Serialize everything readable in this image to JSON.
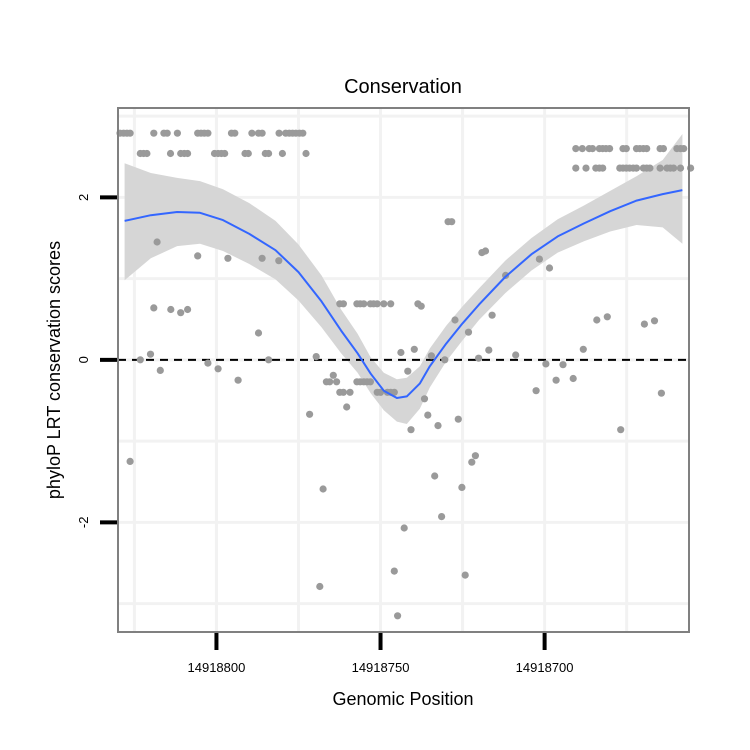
{
  "chart_data": {
    "type": "scatter",
    "title": "Conservation",
    "xlabel": "Genomic Position",
    "ylabel": "phyloP LRT conservation scores",
    "x_reversed": true,
    "xlim": [
      14918830,
      14918656
    ],
    "ylim": [
      -3.35,
      3.1
    ],
    "x_ticks": [
      {
        "value": 14918800,
        "label": "14918800"
      },
      {
        "value": 14918750,
        "label": "14918750"
      },
      {
        "value": 14918700,
        "label": "14918700"
      }
    ],
    "y_ticks": [
      {
        "value": 2,
        "label": "2"
      },
      {
        "value": 0,
        "label": "0"
      },
      {
        "value": -2,
        "label": "-2"
      }
    ],
    "reference_line": {
      "y": 0,
      "style": "dashed"
    },
    "colors": {
      "points": "#9a9a9a",
      "smooth": "#3366ff",
      "ribbon": "#d6d6d6",
      "grid": "#f2f2f2",
      "border": "#808080",
      "refline": "#000000"
    },
    "points": [
      [
        14918829.4,
        2.79
      ],
      [
        14918828.3,
        2.79
      ],
      [
        14918827.3,
        2.79
      ],
      [
        14918826.3,
        2.79
      ],
      [
        14918823.2,
        2.54
      ],
      [
        14918822.2,
        2.54
      ],
      [
        14918821.2,
        2.54
      ],
      [
        14918819.1,
        2.79
      ],
      [
        14918816.0,
        2.79
      ],
      [
        14918815.0,
        2.79
      ],
      [
        14918814.0,
        2.54
      ],
      [
        14918811.9,
        2.79
      ],
      [
        14918810.9,
        2.54
      ],
      [
        14918809.8,
        2.54
      ],
      [
        14918808.8,
        2.54
      ],
      [
        14918805.7,
        2.79
      ],
      [
        14918804.7,
        2.79
      ],
      [
        14918803.7,
        2.79
      ],
      [
        14918802.6,
        2.79
      ],
      [
        14918800.6,
        2.54
      ],
      [
        14918799.5,
        2.54
      ],
      [
        14918798.5,
        2.54
      ],
      [
        14918797.5,
        2.54
      ],
      [
        14918795.4,
        2.79
      ],
      [
        14918794.4,
        2.79
      ],
      [
        14918791.3,
        2.54
      ],
      [
        14918790.3,
        2.54
      ],
      [
        14918789.2,
        2.79
      ],
      [
        14918787.2,
        2.79
      ],
      [
        14918786.1,
        2.79
      ],
      [
        14918785.1,
        2.54
      ],
      [
        14918784.1,
        2.54
      ],
      [
        14918780.9,
        2.79
      ],
      [
        14918779.9,
        2.54
      ],
      [
        14918778.9,
        2.79
      ],
      [
        14918777.8,
        2.79
      ],
      [
        14918776.8,
        2.79
      ],
      [
        14918775.8,
        2.79
      ],
      [
        14918774.7,
        2.79
      ],
      [
        14918773.7,
        2.79
      ],
      [
        14918772.7,
        2.54
      ],
      [
        14918690.5,
        2.6
      ],
      [
        14918688.5,
        2.6
      ],
      [
        14918686.4,
        2.6
      ],
      [
        14918685.4,
        2.6
      ],
      [
        14918683.3,
        2.6
      ],
      [
        14918682.3,
        2.6
      ],
      [
        14918681.3,
        2.6
      ],
      [
        14918680.2,
        2.6
      ],
      [
        14918676.1,
        2.6
      ],
      [
        14918675.1,
        2.6
      ],
      [
        14918672.0,
        2.6
      ],
      [
        14918671.0,
        2.6
      ],
      [
        14918669.9,
        2.6
      ],
      [
        14918668.9,
        2.6
      ],
      [
        14918664.8,
        2.6
      ],
      [
        14918663.8,
        2.6
      ],
      [
        14918659.7,
        2.6
      ],
      [
        14918658.6,
        2.6
      ],
      [
        14918657.6,
        2.6
      ],
      [
        14918690.5,
        2.36
      ],
      [
        14918687.4,
        2.36
      ],
      [
        14918684.4,
        2.36
      ],
      [
        14918683.3,
        2.36
      ],
      [
        14918682.3,
        2.36
      ],
      [
        14918677.1,
        2.36
      ],
      [
        14918676.1,
        2.36
      ],
      [
        14918675.1,
        2.36
      ],
      [
        14918674.1,
        2.36
      ],
      [
        14918673.0,
        2.36
      ],
      [
        14918672.0,
        2.36
      ],
      [
        14918669.9,
        2.36
      ],
      [
        14918668.9,
        2.36
      ],
      [
        14918667.9,
        2.36
      ],
      [
        14918664.8,
        2.36
      ],
      [
        14918662.7,
        2.36
      ],
      [
        14918661.7,
        2.36
      ],
      [
        14918660.7,
        2.36
      ],
      [
        14918658.6,
        2.36
      ],
      [
        14918655.5,
        2.36
      ],
      [
        14918826.3,
        -1.25
      ],
      [
        14918823.2,
        0.0
      ],
      [
        14918820.1,
        0.07
      ],
      [
        14918819.1,
        0.64
      ],
      [
        14918818.1,
        1.45
      ],
      [
        14918817.1,
        -0.13
      ],
      [
        14918813.9,
        0.62
      ],
      [
        14918810.9,
        0.58
      ],
      [
        14918808.8,
        0.62
      ],
      [
        14918805.7,
        1.28
      ],
      [
        14918802.6,
        -0.04
      ],
      [
        14918799.5,
        -0.11
      ],
      [
        14918796.5,
        1.25
      ],
      [
        14918793.4,
        -0.25
      ],
      [
        14918787.2,
        0.33
      ],
      [
        14918786.1,
        1.25
      ],
      [
        14918784.1,
        0.0
      ],
      [
        14918781.0,
        1.22
      ],
      [
        14918771.6,
        -0.67
      ],
      [
        14918769.6,
        0.04
      ],
      [
        14918768.5,
        -2.79
      ],
      [
        14918767.5,
        -1.59
      ],
      [
        14918766.5,
        -0.27
      ],
      [
        14918765.5,
        -0.27
      ],
      [
        14918764.4,
        -0.19
      ],
      [
        14918763.4,
        -0.27
      ],
      [
        14918762.4,
        -0.4
      ],
      [
        14918761.3,
        -0.4
      ],
      [
        14918760.3,
        -0.58
      ],
      [
        14918759.3,
        -0.4
      ],
      [
        14918757.2,
        -0.27
      ],
      [
        14918756.2,
        -0.27
      ],
      [
        14918755.1,
        -0.27
      ],
      [
        14918754.1,
        -0.27
      ],
      [
        14918753.1,
        -0.27
      ],
      [
        14918751.0,
        -0.4
      ],
      [
        14918750.0,
        -0.4
      ],
      [
        14918762.4,
        0.69
      ],
      [
        14918761.3,
        0.69
      ],
      [
        14918757.2,
        0.69
      ],
      [
        14918756.2,
        0.69
      ],
      [
        14918755.1,
        0.69
      ],
      [
        14918753.1,
        0.69
      ],
      [
        14918752.1,
        0.69
      ],
      [
        14918751.0,
        0.69
      ],
      [
        14918749.0,
        0.69
      ],
      [
        14918746.9,
        0.69
      ],
      [
        14918747.9,
        -0.4
      ],
      [
        14918746.9,
        -0.4
      ],
      [
        14918745.8,
        -0.4
      ],
      [
        14918745.8,
        -2.6
      ],
      [
        14918744.8,
        -3.15
      ],
      [
        14918743.8,
        0.09
      ],
      [
        14918742.8,
        -2.07
      ],
      [
        14918741.7,
        -0.14
      ],
      [
        14918740.7,
        -0.86
      ],
      [
        14918739.7,
        0.13
      ],
      [
        14918738.6,
        0.69
      ],
      [
        14918737.6,
        0.66
      ],
      [
        14918736.6,
        -0.48
      ],
      [
        14918735.6,
        -0.68
      ],
      [
        14918734.5,
        0.05
      ],
      [
        14918733.5,
        -1.43
      ],
      [
        14918732.5,
        -0.81
      ],
      [
        14918731.4,
        -1.93
      ],
      [
        14918730.4,
        0.0
      ],
      [
        14918729.4,
        1.7
      ],
      [
        14918728.3,
        1.7
      ],
      [
        14918727.3,
        0.49
      ],
      [
        14918726.3,
        -0.73
      ],
      [
        14918725.2,
        -1.57
      ],
      [
        14918724.2,
        -2.65
      ],
      [
        14918723.2,
        0.34
      ],
      [
        14918722.2,
        -1.26
      ],
      [
        14918721.1,
        -1.18
      ],
      [
        14918720.1,
        0.02
      ],
      [
        14918719.1,
        1.32
      ],
      [
        14918718.0,
        1.34
      ],
      [
        14918717.0,
        0.12
      ],
      [
        14918716.0,
        0.55
      ],
      [
        14918711.9,
        1.04
      ],
      [
        14918708.8,
        0.06
      ],
      [
        14918702.6,
        -0.38
      ],
      [
        14918701.6,
        1.24
      ],
      [
        14918699.6,
        -0.05
      ],
      [
        14918698.5,
        1.13
      ],
      [
        14918696.5,
        -0.25
      ],
      [
        14918694.4,
        -0.06
      ],
      [
        14918691.3,
        -0.23
      ],
      [
        14918688.2,
        0.13
      ],
      [
        14918684.1,
        0.49
      ],
      [
        14918680.9,
        0.53
      ],
      [
        14918676.8,
        -0.86
      ],
      [
        14918669.6,
        0.44
      ],
      [
        14918666.5,
        0.48
      ],
      [
        14918664.4,
        -0.41
      ]
    ],
    "smooth": {
      "x": [
        14918828,
        14918820,
        14918812,
        14918805,
        14918798,
        14918790,
        14918782,
        14918775,
        14918768,
        14918762,
        14918757,
        14918753,
        14918749,
        14918745,
        14918742,
        14918738,
        14918735,
        14918730,
        14918725,
        14918720,
        14918712,
        14918704,
        14918696,
        14918688,
        14918680,
        14918672,
        14918664,
        14918658
      ],
      "y": [
        1.71,
        1.78,
        1.82,
        1.81,
        1.72,
        1.55,
        1.35,
        1.08,
        0.72,
        0.36,
        0.08,
        -0.17,
        -0.38,
        -0.47,
        -0.45,
        -0.29,
        -0.08,
        0.2,
        0.45,
        0.68,
        1.02,
        1.3,
        1.52,
        1.68,
        1.83,
        1.96,
        2.04,
        2.09
      ]
    },
    "ribbon": {
      "upper": [
        2.42,
        2.3,
        2.24,
        2.2,
        2.1,
        1.93,
        1.71,
        1.42,
        1.04,
        0.62,
        0.32,
        0.03,
        -0.16,
        -0.24,
        -0.22,
        -0.08,
        0.14,
        0.42,
        0.66,
        0.88,
        1.22,
        1.5,
        1.73,
        1.9,
        2.08,
        2.26,
        2.46,
        2.78
      ],
      "lower": [
        0.98,
        1.25,
        1.4,
        1.43,
        1.34,
        1.18,
        0.99,
        0.73,
        0.4,
        0.08,
        -0.16,
        -0.41,
        -0.62,
        -0.76,
        -0.79,
        -0.6,
        -0.34,
        -0.02,
        0.24,
        0.49,
        0.82,
        1.1,
        1.32,
        1.46,
        1.58,
        1.66,
        1.63,
        1.43
      ]
    }
  }
}
